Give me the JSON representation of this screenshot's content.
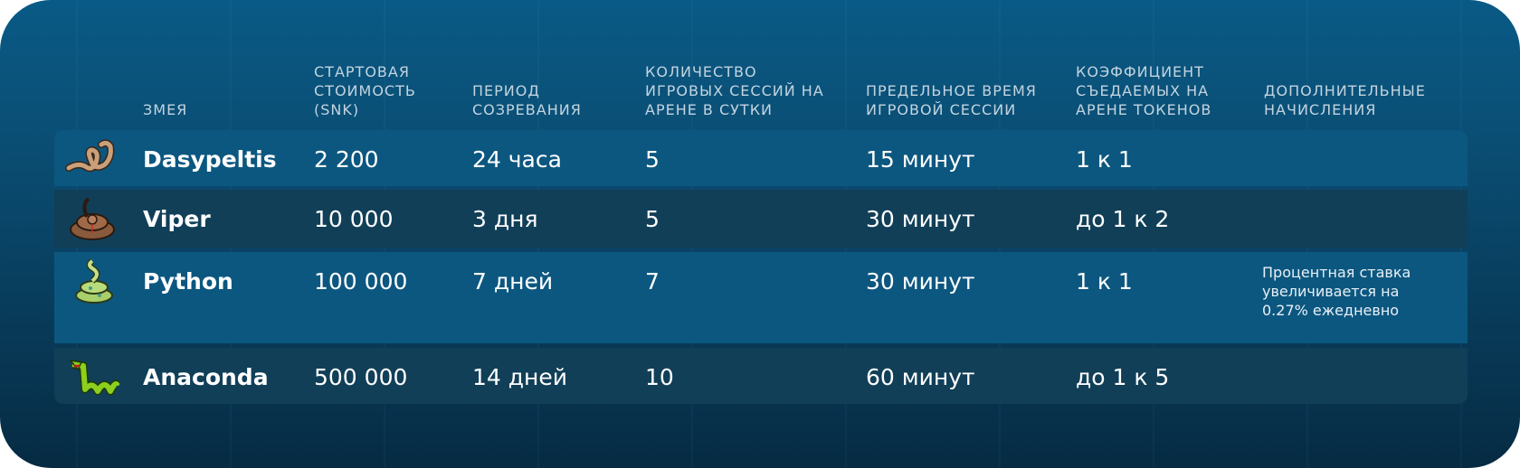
{
  "headers": {
    "snake": "Змея",
    "price": "Стартовая стоимость (SNK)",
    "period": "Период созревания",
    "sessions": "Количество игровых сессий на арене в сутки",
    "time": "Предельное время игровой сессии",
    "ratio": "Коэффициент съедаемых на арене токенов",
    "extra": "Дополнительные начисления"
  },
  "rows": [
    {
      "name": "Dasypeltis",
      "icon": "dasypeltis-snake-icon",
      "price": "2 200",
      "period": "24 часа",
      "sessions": "5",
      "time": "15 минут",
      "ratio": "1 к 1",
      "extra": ""
    },
    {
      "name": "Viper",
      "icon": "viper-snake-icon",
      "price": "10 000",
      "period": "3 дня",
      "sessions": "5",
      "time": "30 минут",
      "ratio": "до 1 к 2",
      "extra": ""
    },
    {
      "name": "Python",
      "icon": "python-snake-icon",
      "price": "100 000",
      "period": "7 дней",
      "sessions": "7",
      "time": "30 минут",
      "ratio": "1 к 1",
      "extra": "Процентная ставка увеличивается на 0.27% ежедневно"
    },
    {
      "name": "Anaconda",
      "icon": "anaconda-snake-icon",
      "price": "500 000",
      "period": "14 дней",
      "sessions": "10",
      "time": "60 минут",
      "ratio": "до 1 к 5",
      "extra": ""
    }
  ],
  "colors": {
    "row_light": "#0c5780",
    "row_dark": "#113f58",
    "background": "#095a86"
  }
}
